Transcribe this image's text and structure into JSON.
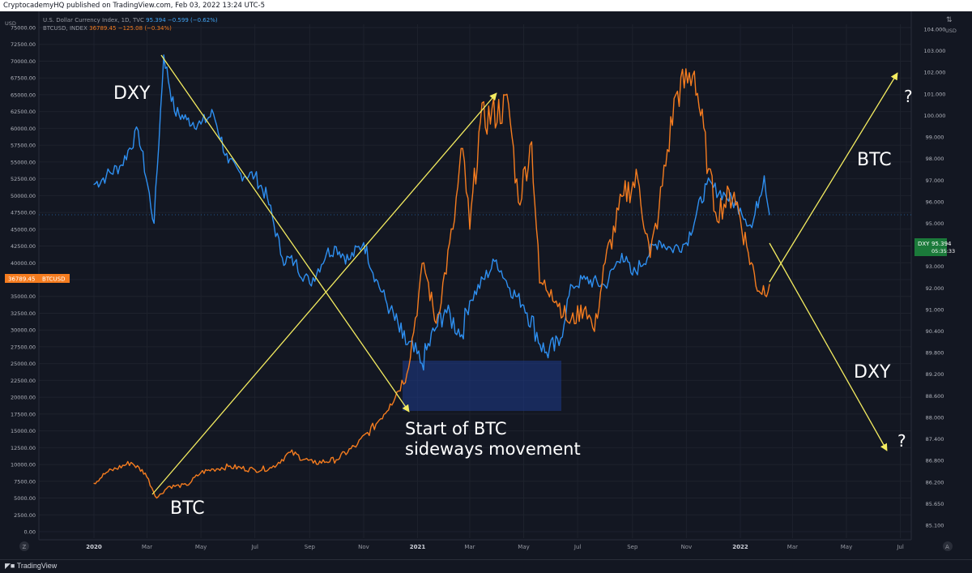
{
  "header": {
    "published_text": "CryptocademyHQ published on TradingView.com, Feb 03, 2022 13:24 UTC-5"
  },
  "legend": {
    "dxy_name": "U.S. Dollar Currency Index, 1D, TVC",
    "dxy_values": "95.394  −0.599 (−0.62%)",
    "btc_name": "BTCUSD, INDEX",
    "btc_values": "36789.45  −125.08 (−0.34%)"
  },
  "footer": {
    "brand": "TradingView"
  },
  "colors": {
    "dxy": "#2e8ff0",
    "btc": "#f57c1f",
    "arrow": "#f4ec60",
    "bg": "#131722",
    "box": "#1e3a8a",
    "tag_green": "#1b7a3a"
  },
  "chart_data": {
    "type": "line",
    "x_tick_labels": [
      "2020",
      "Mar",
      "May",
      "Jul",
      "Sep",
      "Nov",
      "2021",
      "Mar",
      "May",
      "Jul",
      "Sep",
      "Nov",
      "2022",
      "Mar",
      "May",
      "Jul"
    ],
    "left_axis": {
      "unit": "USD",
      "ticks": [
        "75000.00",
        "72500.00",
        "70000.00",
        "67500.00",
        "65000.00",
        "62500.00",
        "60000.00",
        "57500.00",
        "55000.00",
        "52500.00",
        "50000.00",
        "47500.00",
        "45000.00",
        "42500.00",
        "40000.00",
        "37500.00",
        "35000.00",
        "32500.00",
        "30000.00",
        "27500.00",
        "25000.00",
        "22500.00",
        "20000.00",
        "17500.00",
        "15000.00",
        "12500.00",
        "10000.00",
        "7500.00",
        "5000.00",
        "2500.00",
        "0.00"
      ],
      "ylim": [
        0,
        75000
      ]
    },
    "right_axis": {
      "unit": "USD",
      "ticks": [
        "104.000",
        "103.000",
        "102.000",
        "101.000",
        "100.000",
        "99.000",
        "98.000",
        "97.000",
        "96.000",
        "95.000",
        "94.000",
        "93.000",
        "92.000",
        "91.000",
        "90.400",
        "89.800",
        "89.200",
        "88.600",
        "88.000",
        "87.400",
        "86.800",
        "86.200",
        "85.650",
        "85.100"
      ],
      "ylim": [
        85.1,
        104
      ]
    },
    "series": [
      {
        "name": "DXY",
        "axis": "right",
        "points": [
          [
            "2020-01-01",
            96.8
          ],
          [
            "2020-01-15",
            97.2
          ],
          [
            "2020-02-01",
            97.7
          ],
          [
            "2020-02-20",
            99.3
          ],
          [
            "2020-03-09",
            95.0
          ],
          [
            "2020-03-20",
            102.8
          ],
          [
            "2020-04-01",
            100.2
          ],
          [
            "2020-04-15",
            99.8
          ],
          [
            "2020-05-01",
            99.6
          ],
          [
            "2020-05-15",
            100.1
          ],
          [
            "2020-06-01",
            97.8
          ],
          [
            "2020-06-15",
            97.3
          ],
          [
            "2020-07-01",
            97.2
          ],
          [
            "2020-07-15",
            96.2
          ],
          [
            "2020-08-01",
            93.4
          ],
          [
            "2020-08-15",
            93.2
          ],
          [
            "2020-09-01",
            92.2
          ],
          [
            "2020-09-20",
            93.6
          ],
          [
            "2020-10-01",
            93.9
          ],
          [
            "2020-10-15",
            93.3
          ],
          [
            "2020-11-01",
            94.1
          ],
          [
            "2020-11-15",
            92.4
          ],
          [
            "2020-12-01",
            91.0
          ],
          [
            "2020-12-15",
            90.2
          ],
          [
            "2021-01-06",
            89.5
          ],
          [
            "2021-01-20",
            90.4
          ],
          [
            "2021-02-01",
            91.0
          ],
          [
            "2021-02-20",
            90.3
          ],
          [
            "2021-03-01",
            91.4
          ],
          [
            "2021-03-31",
            93.3
          ],
          [
            "2021-04-15",
            92.0
          ],
          [
            "2021-05-01",
            91.2
          ],
          [
            "2021-05-25",
            89.8
          ],
          [
            "2021-06-10",
            90.0
          ],
          [
            "2021-06-25",
            92.1
          ],
          [
            "2021-07-10",
            92.4
          ],
          [
            "2021-08-01",
            92.1
          ],
          [
            "2021-08-20",
            93.6
          ],
          [
            "2021-09-01",
            92.6
          ],
          [
            "2021-10-01",
            94.2
          ],
          [
            "2021-10-15",
            93.8
          ],
          [
            "2021-11-01",
            94.1
          ],
          [
            "2021-11-24",
            96.8
          ],
          [
            "2021-12-15",
            96.3
          ],
          [
            "2022-01-01",
            95.7
          ],
          [
            "2022-01-14",
            94.8
          ],
          [
            "2022-01-28",
            97.2
          ],
          [
            "2022-02-03",
            95.394
          ]
        ]
      },
      {
        "name": "BTCUSD",
        "axis": "left",
        "points": [
          [
            "2020-01-01",
            7200
          ],
          [
            "2020-01-15",
            8800
          ],
          [
            "2020-02-12",
            10300
          ],
          [
            "2020-02-28",
            8700
          ],
          [
            "2020-03-12",
            5000
          ],
          [
            "2020-03-25",
            6700
          ],
          [
            "2020-04-15",
            6900
          ],
          [
            "2020-05-01",
            8800
          ],
          [
            "2020-05-15",
            9300
          ],
          [
            "2020-06-01",
            9700
          ],
          [
            "2020-07-01",
            9200
          ],
          [
            "2020-07-20",
            9500
          ],
          [
            "2020-08-10",
            11800
          ],
          [
            "2020-09-05",
            10200
          ],
          [
            "2020-10-01",
            10700
          ],
          [
            "2020-10-25",
            13000
          ],
          [
            "2020-11-15",
            16000
          ],
          [
            "2020-12-01",
            19000
          ],
          [
            "2020-12-20",
            23500
          ],
          [
            "2021-01-08",
            40000
          ],
          [
            "2021-01-22",
            31000
          ],
          [
            "2021-02-10",
            45000
          ],
          [
            "2021-02-21",
            57000
          ],
          [
            "2021-03-01",
            45000
          ],
          [
            "2021-03-13",
            61000
          ],
          [
            "2021-04-14",
            63500
          ],
          [
            "2021-04-25",
            49000
          ],
          [
            "2021-05-10",
            58000
          ],
          [
            "2021-05-19",
            37000
          ],
          [
            "2021-06-01",
            36000
          ],
          [
            "2021-06-22",
            31000
          ],
          [
            "2021-07-10",
            33500
          ],
          [
            "2021-07-20",
            29800
          ],
          [
            "2021-08-01",
            40000
          ],
          [
            "2021-08-22",
            50000
          ],
          [
            "2021-09-07",
            52500
          ],
          [
            "2021-09-21",
            40800
          ],
          [
            "2021-10-01",
            48000
          ],
          [
            "2021-10-20",
            65000
          ],
          [
            "2021-11-10",
            68500
          ],
          [
            "2021-11-26",
            54000
          ],
          [
            "2021-12-04",
            47500
          ],
          [
            "2021-12-25",
            50500
          ],
          [
            "2022-01-10",
            41500
          ],
          [
            "2022-01-22",
            35800
          ],
          [
            "2022-02-03",
            36789.45
          ]
        ]
      }
    ],
    "last_value_tags": [
      {
        "label": "DXY",
        "value": "95.394",
        "sub": "05:35:33"
      },
      {
        "label": "BTCUSD",
        "value": "36789.45"
      }
    ],
    "annotations": [
      {
        "text": "DXY",
        "where": "near 2020 DXY peak"
      },
      {
        "text": "BTC",
        "where": "below 2020 BTC low"
      },
      {
        "text": "Start of BTC",
        "where": "below box"
      },
      {
        "text": "sideways movement",
        "where": "below box"
      },
      {
        "text": "BTC",
        "where": "right, upper projection"
      },
      {
        "text": "DXY",
        "where": "right, lower projection"
      },
      {
        "text": "?",
        "where": "upper right arrow tip"
      },
      {
        "text": "?",
        "where": "lower right arrow tip"
      }
    ],
    "axis_badges": {
      "left_top": "Z",
      "right_top": "⇅",
      "right_bottom": "A"
    }
  }
}
